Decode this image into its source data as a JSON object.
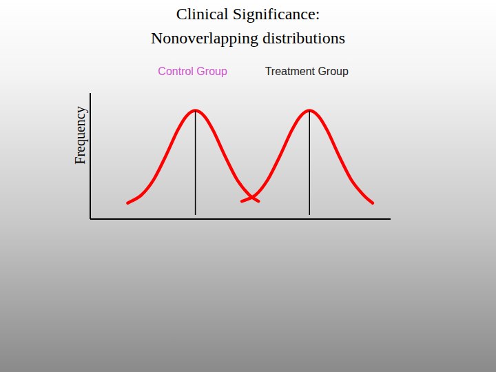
{
  "chart_data": {
    "type": "line",
    "title": "Clinical Significance: Nonoverlapping distributions",
    "y_label": "Frequency",
    "xlim": [
      0,
      100
    ],
    "ylim": [
      0,
      100
    ],
    "tick_labels": false,
    "grid": false,
    "series": [
      {
        "name": "Control Group",
        "color": "#ff0000",
        "mean": 35,
        "x": [
          12.5,
          17,
          21,
          25,
          29,
          32,
          35,
          38,
          41,
          45,
          49,
          53,
          56
        ],
        "values": [
          12.7,
          19,
          30.8,
          49.3,
          69.9,
          81.6,
          86,
          81.6,
          69.9,
          49.3,
          30.8,
          19,
          14.1
        ]
      },
      {
        "name": "Treatment Group",
        "color": "#ff0000",
        "mean": 73,
        "x": [
          50.5,
          55,
          59,
          63,
          67,
          70,
          73,
          76,
          79,
          83,
          87,
          91,
          94
        ],
        "values": [
          14.1,
          19,
          30.8,
          49.3,
          69.9,
          81.6,
          86,
          81.6,
          69.9,
          49.3,
          30.8,
          19,
          12.7
        ]
      }
    ]
  }
}
